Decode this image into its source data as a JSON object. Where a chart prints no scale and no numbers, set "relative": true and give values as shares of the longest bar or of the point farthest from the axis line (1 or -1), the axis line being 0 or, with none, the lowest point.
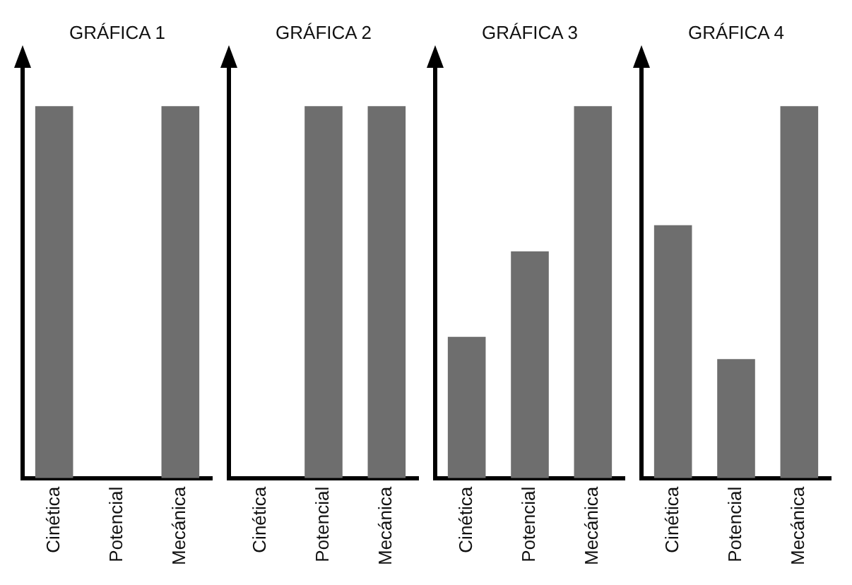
{
  "chart_data": [
    {
      "type": "bar",
      "title": "GRÁFICA 1",
      "relative": true,
      "categories": [
        "Cinética",
        "Potencial",
        "Mecánica"
      ],
      "values": [
        1,
        0,
        1
      ],
      "color": "#6e6e6e",
      "grid": false,
      "legend": false
    },
    {
      "type": "bar",
      "title": "GRÁFICA 2",
      "relative": true,
      "categories": [
        "Cinética",
        "Potencial",
        "Mecánica"
      ],
      "values": [
        0,
        1,
        1
      ],
      "color": "#6e6e6e",
      "grid": false,
      "legend": false
    },
    {
      "type": "bar",
      "title": "GRÁFICA 3",
      "relative": true,
      "categories": [
        "Cinética",
        "Potencial",
        "Mecánica"
      ],
      "values": [
        0.38,
        0.61,
        1
      ],
      "color": "#6e6e6e",
      "grid": false,
      "legend": false
    },
    {
      "type": "bar",
      "title": "GRÁFICA 4",
      "relative": true,
      "categories": [
        "Cinética",
        "Potencial",
        "Mecánica"
      ],
      "values": [
        0.68,
        0.32,
        1
      ],
      "color": "#6e6e6e",
      "grid": false,
      "legend": false
    }
  ]
}
